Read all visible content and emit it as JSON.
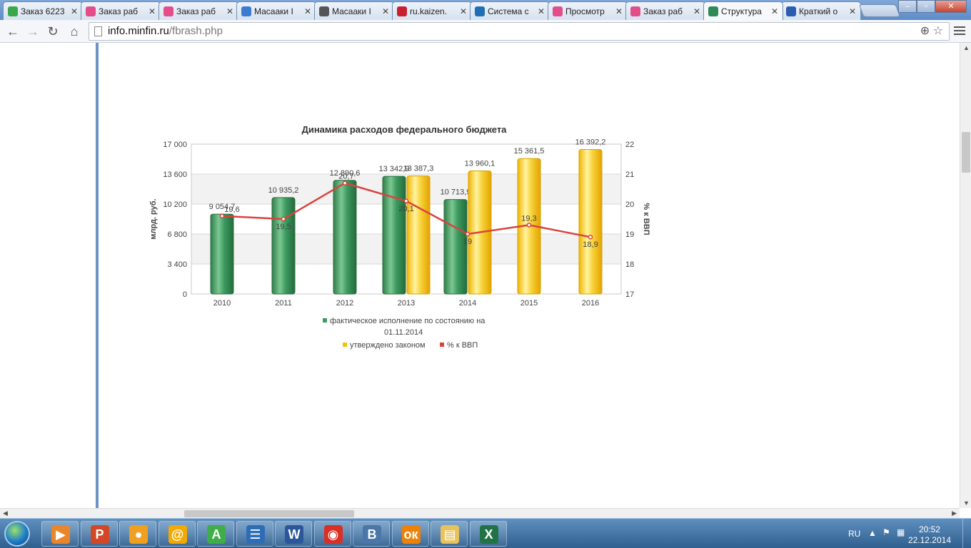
{
  "browser": {
    "tabs": [
      {
        "label": "Заказ 6223",
        "icon_color": "#3aa84a",
        "active": false
      },
      {
        "label": "Заказ раб",
        "icon_color": "#e24d8a",
        "active": false
      },
      {
        "label": "Заказ раб",
        "icon_color": "#e24d8a",
        "active": false
      },
      {
        "label": "Масааки I",
        "icon_color": "#3b7bd1",
        "active": false
      },
      {
        "label": "Масааки I",
        "icon_color": "#555555",
        "active": false
      },
      {
        "label": "ru.kaizen.",
        "icon_color": "#c8202f",
        "active": false
      },
      {
        "label": "Система с",
        "icon_color": "#1f6fb5",
        "active": false
      },
      {
        "label": "Просмотр",
        "icon_color": "#e24d8a",
        "active": false
      },
      {
        "label": "Заказ раб",
        "icon_color": "#e24d8a",
        "active": false
      },
      {
        "label": "Структура",
        "icon_color": "#2e8b57",
        "active": true
      },
      {
        "label": "Краткий о",
        "icon_color": "#2a5db0",
        "active": false
      }
    ],
    "url_domain": "info.minfin.ru",
    "url_path": "/fbrash.php"
  },
  "taskbar": {
    "apps": [
      {
        "name": "media-player",
        "color": "#e8862c",
        "glyph": "▶"
      },
      {
        "name": "powerpoint",
        "color": "#d24726",
        "glyph": "P"
      },
      {
        "name": "ball-app",
        "color": "#f0a020",
        "glyph": "●"
      },
      {
        "name": "mail-agent",
        "color": "#f2a900",
        "glyph": "@"
      },
      {
        "name": "a-app",
        "color": "#3fae49",
        "glyph": "A"
      },
      {
        "name": "txt-ru",
        "color": "#2d6db5",
        "glyph": "☰"
      },
      {
        "name": "word",
        "color": "#2b579a",
        "glyph": "W"
      },
      {
        "name": "chrome",
        "color": "#d93025",
        "glyph": "◉"
      },
      {
        "name": "vkontakte",
        "color": "#4a76a8",
        "glyph": "B"
      },
      {
        "name": "odnoklassniki",
        "color": "#ee8208",
        "glyph": "ок"
      },
      {
        "name": "explorer",
        "color": "#e8c25a",
        "glyph": "▤"
      },
      {
        "name": "excel",
        "color": "#217346",
        "glyph": "X"
      }
    ],
    "lang": "RU",
    "time": "20:52",
    "date": "22.12.2014"
  },
  "chart_data": {
    "type": "bar",
    "title": "Динамика расходов федерального бюджета",
    "ylabel": "млрд. руб.",
    "y2label": "% к ВВП",
    "ylim": [
      0,
      17000
    ],
    "yticks": [
      "0",
      "3 400",
      "6 800",
      "10 200",
      "13 600",
      "17 000"
    ],
    "ytick_values": [
      0,
      3400,
      6800,
      10200,
      13600,
      17000
    ],
    "y2lim": [
      17,
      22
    ],
    "y2ticks": [
      "17",
      "18",
      "19",
      "20",
      "21",
      "22"
    ],
    "categories": [
      "2010",
      "2011",
      "2012",
      "2013",
      "2014",
      "2015",
      "2016"
    ],
    "series": [
      {
        "name": "фактическое исполнение по состоянию на 01.11.2014",
        "type": "bar",
        "color": "#3c9a5f",
        "values": [
          9054.7,
          10935.2,
          12890.6,
          13342.9,
          10713.9,
          null,
          null
        ],
        "labels": [
          "9 054,7",
          "10 935,2",
          "12 890,6",
          "13 342,9",
          "10 713,9",
          "",
          ""
        ]
      },
      {
        "name": "утверждено законом",
        "type": "bar",
        "color": "#f5c400",
        "values": [
          null,
          null,
          null,
          13387.3,
          13960.1,
          15361.5,
          16392.2
        ],
        "labels": [
          "",
          "",
          "",
          "13 387,3",
          "13 960,1",
          "15 361,5",
          "16 392,2"
        ]
      },
      {
        "name": "% к ВВП",
        "type": "line",
        "axis": "right",
        "color": "#d9433f",
        "values": [
          19.6,
          19.5,
          20.7,
          20.1,
          19.0,
          19.3,
          18.9
        ],
        "labels": [
          "19,6",
          "19,5",
          "20,7",
          "20,1",
          "19",
          "19,3",
          "18,9"
        ]
      }
    ],
    "legend_line1": "фактическое исполнение по состоянию на",
    "legend_line2": "01.11.2014",
    "legend_item2": "утверждено законом",
    "legend_item3": "% к ВВП",
    "legend_position": "bottom",
    "grid": true
  }
}
